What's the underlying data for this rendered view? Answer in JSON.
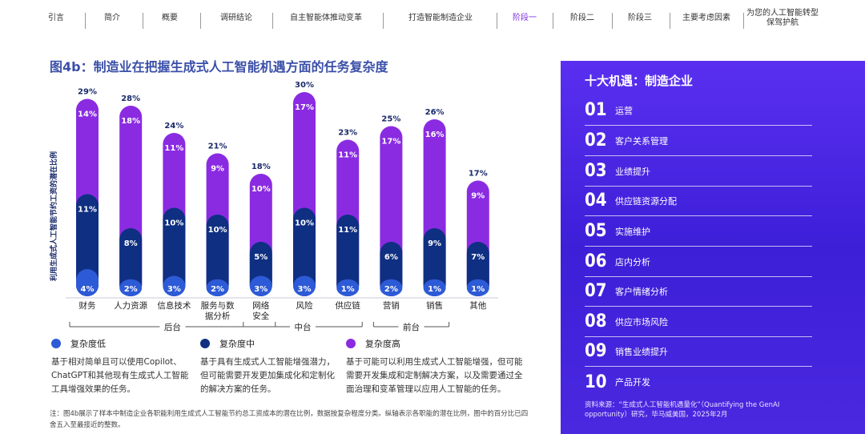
{
  "nav": {
    "items": [
      "引言",
      "简介",
      "概要",
      "调研结论",
      "自主智能体推动变革",
      "打造智能制造企业",
      "阶段一",
      "阶段二",
      "阶段三",
      "主要考虑因素",
      "为您的人工智能转型保驾护航"
    ],
    "active_index": 6
  },
  "title": "图4b：制造业在把握生成式人工智能机遇方面的任务复杂度",
  "chart_data": {
    "type": "bar",
    "stacked": true,
    "ylabel": "利用生成式人工智能节约工资的潜在比例",
    "categories": [
      "财务",
      "人力资源",
      "信息技术",
      "服务与数据分析",
      "网络安全",
      "风险",
      "供应链",
      "营销",
      "销售",
      "其他"
    ],
    "category_labels": [
      [
        "财务"
      ],
      [
        "人力资源"
      ],
      [
        "信息技术"
      ],
      [
        "服务与数",
        "据分析"
      ],
      [
        "网络",
        "安全"
      ],
      [
        "风险"
      ],
      [
        "供应链"
      ],
      [
        "营销"
      ],
      [
        "销售"
      ],
      [
        "其他"
      ]
    ],
    "totals": [
      29,
      28,
      24,
      21,
      18,
      30,
      23,
      25,
      26,
      17
    ],
    "total_labels": [
      "29%",
      "28%",
      "24%",
      "21%",
      "18%",
      "30%",
      "23%",
      "25%",
      "26%",
      "17%"
    ],
    "series": [
      {
        "name": "复杂度低",
        "color": "#2d5ad6",
        "values": [
          4,
          2,
          3,
          2,
          3,
          3,
          1,
          2,
          1,
          1
        ],
        "labels": [
          "4%",
          "2%",
          "3%",
          "2%",
          "3%",
          "3%",
          "1%",
          "2%",
          "1%",
          "1%"
        ]
      },
      {
        "name": "复杂度中",
        "color": "#0f2f82",
        "values": [
          11,
          8,
          10,
          10,
          5,
          10,
          11,
          6,
          9,
          7
        ],
        "labels": [
          "11%",
          "8%",
          "10%",
          "10%",
          "5%",
          "10%",
          "11%",
          "6%",
          "9%",
          "7%"
        ]
      },
      {
        "name": "复杂度高",
        "color": "#8a2be2",
        "values": [
          14,
          18,
          11,
          9,
          10,
          17,
          11,
          17,
          16,
          9
        ],
        "labels": [
          "14%",
          "18%",
          "11%",
          "9%",
          "10%",
          "17%",
          "11%",
          "17%",
          "16%",
          "9%"
        ]
      }
    ],
    "groups": [
      {
        "label": "后台",
        "from": 0,
        "to": 4
      },
      {
        "label": "中台",
        "from": 4,
        "to": 6
      },
      {
        "label": "前台",
        "from": 7,
        "to": 8
      }
    ]
  },
  "legend_desc": [
    "基于相对简单且可以使用Copilot、ChatGPT和其他现有生成式人工智能工具增强效果的任务。",
    "基于具有生成式人工智能增强潜力，但可能需要开发更加集成化和定制化的解决方案的任务。",
    "基于可能可以利用生成式人工智能增强，但可能需要开发集成和定制解决方案，以及需要通过全面治理和变革管理以应用人工智能的任务。"
  ],
  "note": "注：图4b展示了样本中制造企业各职能利用生成式人工智能节约总工资成本的潜在比例，数据按复杂程度分类。纵轴表示各职能的潜在比例，图中的百分比已四舍五入至最接近的整数。",
  "panel": {
    "title": "十大机遇：制造企业",
    "items": [
      {
        "num": "01",
        "label": "运营"
      },
      {
        "num": "02",
        "label": "客户关系管理"
      },
      {
        "num": "03",
        "label": "业绩提升"
      },
      {
        "num": "04",
        "label": "供应链资源分配"
      },
      {
        "num": "05",
        "label": "实施维护"
      },
      {
        "num": "06",
        "label": "店内分析"
      },
      {
        "num": "07",
        "label": "客户情绪分析"
      },
      {
        "num": "08",
        "label": "供应市场风险"
      },
      {
        "num": "09",
        "label": "销售业绩提升"
      },
      {
        "num": "10",
        "label": "产品开发"
      }
    ],
    "source": "资料来源：“生成式人工智能机遇量化”（Quantifying the GenAI opportunity）研究，毕马威美国，2025年2月"
  }
}
